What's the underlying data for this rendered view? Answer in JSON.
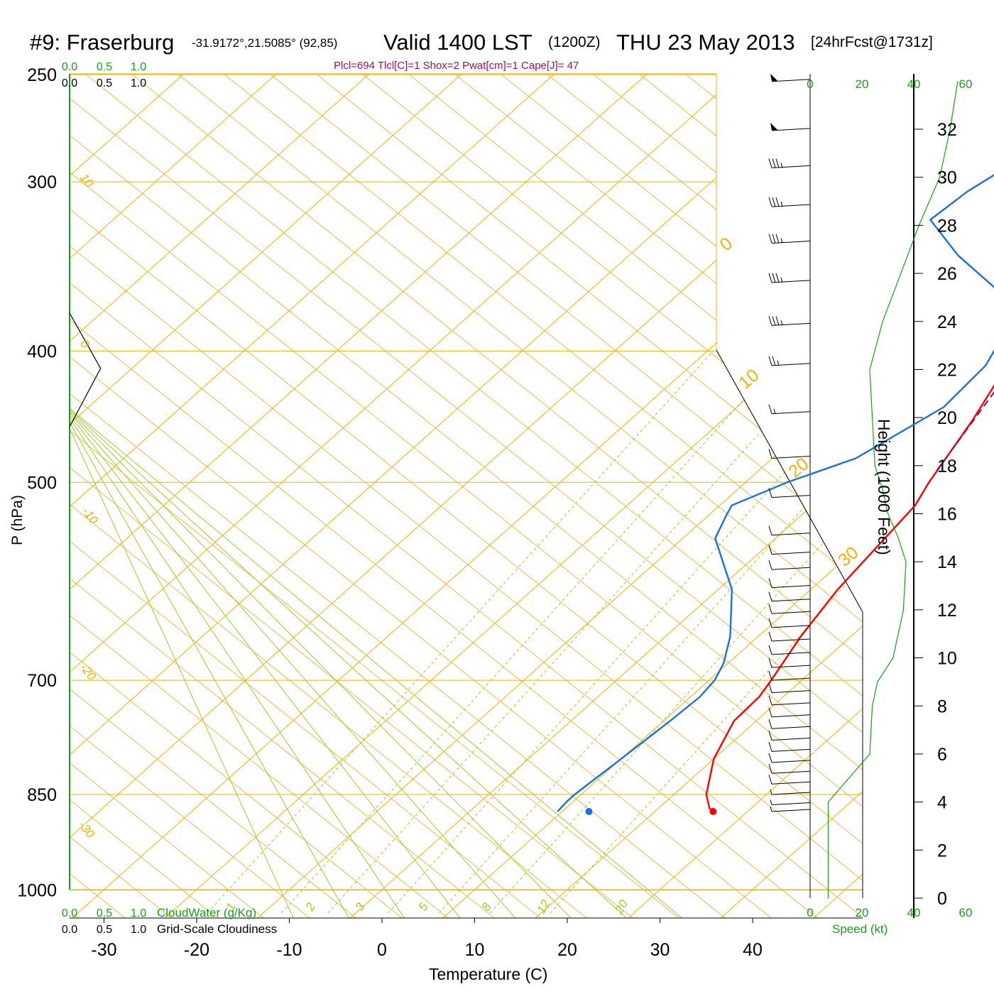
{
  "header": {
    "station": "#9: Fraserburg",
    "coords": "-31.9172°,21.5085° (92,85)",
    "valid": "Valid 1400 LST",
    "utc": "(1200Z)",
    "date": "THU 23 May 2013",
    "forecast": "[24hrFcst@1731z]",
    "params": "Plcl=694 Tlcl[C]=1 Shox=2 Pwat[cm]=1 Cape[J]= 47"
  },
  "labels": {
    "pressure_axis": "P (hPa)",
    "temperature_axis": "Temperature (C)",
    "height_axis": "Height (1000 Feet)",
    "speed_axis": "Speed (kt)",
    "cloud_water": "CloudWater (g/Kg)",
    "cloudiness": "Grid-Scale Cloudiness"
  },
  "colors": {
    "temperature": "#ff0000",
    "dewpoint": "#1a6fe8",
    "isobar": "#f5b000",
    "dry_adiabat": "#e8b23c",
    "moist_adiabat": "#9ccc2c",
    "mixing_ratio": "#9ccc2c",
    "parcel": "#8b0f5a",
    "speed": "#1a9e1a",
    "header_params": "#a0105a"
  },
  "chart_data": {
    "type": "skew-t",
    "pressure_ticks": [
      250,
      300,
      400,
      500,
      700,
      850,
      1000
    ],
    "temperature_ticks": [
      -30,
      -20,
      -10,
      0,
      10,
      20,
      30,
      40
    ],
    "height_ticks": [
      0,
      2,
      4,
      6,
      8,
      10,
      12,
      14,
      16,
      18,
      20,
      22,
      24,
      26,
      28,
      30,
      32
    ],
    "speed_ticks": [
      0,
      20,
      40,
      60
    ],
    "cloud_ticks": [
      "0.0",
      "0.5",
      "1.0"
    ],
    "dry_adiabat_labels": [
      "10",
      "0",
      "-10",
      "-20",
      "-30"
    ],
    "isotherm_labels": [
      "0",
      "10",
      "20",
      "30"
    ],
    "mixing_ratio_labels": [
      "1",
      "2",
      "3",
      "5",
      "8",
      "12",
      "20"
    ],
    "temperature_profile": {
      "name": "Temperature",
      "points": [
        [
          875,
          26.3
        ],
        [
          870,
          25.5
        ],
        [
          850,
          23.5
        ],
        [
          800,
          20.0
        ],
        [
          750,
          17.6
        ],
        [
          720,
          17.4
        ],
        [
          700,
          16.7
        ],
        [
          650,
          14.6
        ],
        [
          600,
          12.9
        ],
        [
          550,
          11.8
        ],
        [
          520,
          11.1
        ],
        [
          500,
          9.8
        ],
        [
          450,
          7.0
        ],
        [
          400,
          3.3
        ],
        [
          380,
          1.9
        ],
        [
          350,
          0.2
        ],
        [
          320,
          -1.2
        ],
        [
          300,
          -3.4
        ],
        [
          270,
          -5.0
        ],
        [
          252,
          -5.2
        ]
      ]
    },
    "dewpoint_profile": {
      "name": "Dewpoint",
      "points": [
        [
          875,
          9.5
        ],
        [
          860,
          9.3
        ],
        [
          850,
          9.3
        ],
        [
          800,
          10.0
        ],
        [
          750,
          10.7
        ],
        [
          720,
          11.0
        ],
        [
          700,
          10.6
        ],
        [
          680,
          9.5
        ],
        [
          650,
          7.0
        ],
        [
          600,
          1.5
        ],
        [
          550,
          -6.5
        ],
        [
          530,
          -8.0
        ],
        [
          520,
          -8.7
        ],
        [
          500,
          -5.5
        ],
        [
          480,
          -1.0
        ],
        [
          440,
          2.3
        ],
        [
          410,
          1.8
        ],
        [
          380,
          -0.8
        ],
        [
          360,
          -6.3
        ],
        [
          340,
          -14.5
        ],
        [
          320,
          -21.8
        ],
        [
          305,
          -21.2
        ],
        [
          280,
          -18.5
        ],
        [
          262,
          -17.4
        ],
        [
          252,
          -17.8
        ]
      ]
    },
    "parcel_profile": {
      "name": "Parcel",
      "points": [
        [
          382,
          2.3
        ],
        [
          430,
          6.0
        ],
        [
          490,
          9.2
        ]
      ]
    },
    "surface_markers": {
      "pressure": 875,
      "temperature": 26.3,
      "dewpoint": 12.9
    },
    "wind_speed_profile": {
      "name": "Speed",
      "points": [
        [
          0,
          7
        ],
        [
          4,
          7
        ],
        [
          6,
          23
        ],
        [
          8,
          24
        ],
        [
          9,
          26
        ],
        [
          10,
          32
        ],
        [
          12,
          36
        ],
        [
          14,
          37
        ],
        [
          15,
          34
        ],
        [
          16,
          30
        ],
        [
          17,
          28
        ],
        [
          18,
          25
        ],
        [
          20,
          24
        ],
        [
          22,
          23
        ],
        [
          24,
          28
        ],
        [
          26,
          35
        ],
        [
          28,
          42
        ],
        [
          30,
          50
        ],
        [
          32,
          54
        ],
        [
          34,
          57
        ]
      ]
    },
    "cloud_water": {
      "name": "CloudWater",
      "points": []
    },
    "cloudiness": {
      "name": "Grid-Scale Cloudiness",
      "points": [
        [
          375,
          0
        ],
        [
          412,
          0.45
        ],
        [
          455,
          0
        ]
      ]
    },
    "wind_barbs": [
      {
        "p": 253,
        "speed": 50
      },
      {
        "p": 275,
        "speed": 50
      },
      {
        "p": 293,
        "speed": 35
      },
      {
        "p": 313,
        "speed": 35
      },
      {
        "p": 333,
        "speed": 35
      },
      {
        "p": 356,
        "speed": 35
      },
      {
        "p": 383,
        "speed": 35
      },
      {
        "p": 410,
        "speed": 25
      },
      {
        "p": 445,
        "speed": 15
      },
      {
        "p": 480,
        "speed": 10
      },
      {
        "p": 513,
        "speed": 10
      },
      {
        "p": 547,
        "speed": 10
      },
      {
        "p": 565,
        "speed": 10
      },
      {
        "p": 580,
        "speed": 10
      },
      {
        "p": 598,
        "speed": 10
      },
      {
        "p": 612,
        "speed": 10
      },
      {
        "p": 625,
        "speed": 10
      },
      {
        "p": 640,
        "speed": 10
      },
      {
        "p": 655,
        "speed": 10
      },
      {
        "p": 670,
        "speed": 10
      },
      {
        "p": 685,
        "speed": 10
      },
      {
        "p": 700,
        "speed": 10
      },
      {
        "p": 715,
        "speed": 10
      },
      {
        "p": 730,
        "speed": 10
      },
      {
        "p": 745,
        "speed": 10
      },
      {
        "p": 760,
        "speed": 10
      },
      {
        "p": 775,
        "speed": 10
      },
      {
        "p": 790,
        "speed": 10
      },
      {
        "p": 805,
        "speed": 10
      },
      {
        "p": 820,
        "speed": 10
      },
      {
        "p": 835,
        "speed": 10
      },
      {
        "p": 850,
        "speed": 5
      },
      {
        "p": 865,
        "speed": 5
      },
      {
        "p": 875,
        "speed": 5
      }
    ]
  }
}
